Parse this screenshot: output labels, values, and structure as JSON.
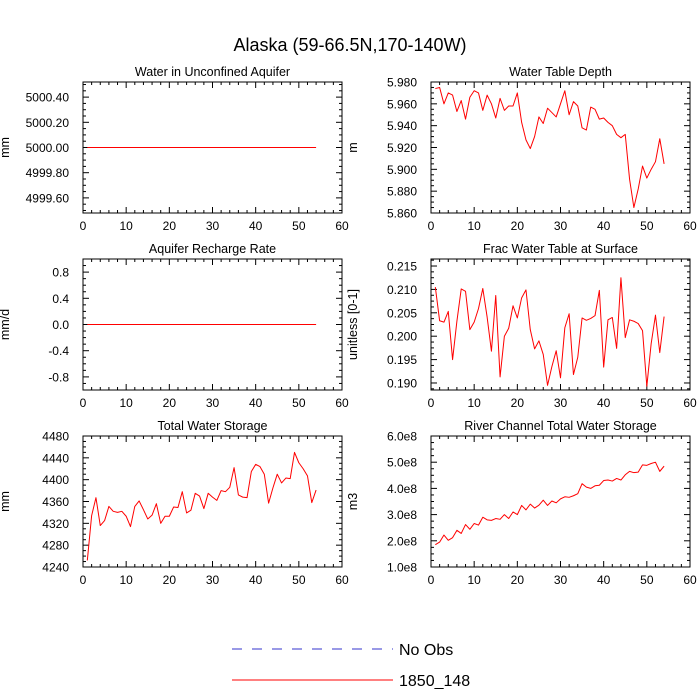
{
  "figure": {
    "title": "Alaska (59-66.5N,170-140W)",
    "legend": [
      {
        "label": "No Obs",
        "color": "#3333cc",
        "dashed": true
      },
      {
        "label": "1850_148",
        "color": "#ff0000",
        "dashed": false
      }
    ]
  },
  "chart_data": [
    {
      "type": "line",
      "title": "Water in Unconfined Aquifer",
      "ylabel": "mm",
      "xlim": [
        0,
        60
      ],
      "ylim": [
        4999.48,
        5000.52
      ],
      "xticks": [
        0,
        10,
        20,
        30,
        40,
        50,
        60
      ],
      "yticks": [
        4999.6,
        4999.8,
        5000.0,
        5000.2,
        5000.4
      ],
      "ytick_labels": [
        "4999.60",
        "4999.80",
        "5000.00",
        "5000.20",
        "5000.40"
      ],
      "series": [
        {
          "color": "#ff0000",
          "x": [
            1,
            54
          ],
          "values": [
            5000.0,
            5000.0
          ]
        }
      ]
    },
    {
      "type": "line",
      "title": "Water Table Depth",
      "ylabel": "m",
      "xlim": [
        0,
        60
      ],
      "ylim": [
        5.86,
        5.98
      ],
      "xticks": [
        0,
        10,
        20,
        30,
        40,
        50,
        60
      ],
      "yticks": [
        5.86,
        5.88,
        5.9,
        5.92,
        5.94,
        5.96,
        5.98
      ],
      "ytick_labels": [
        "5.860",
        "5.880",
        "5.900",
        "5.920",
        "5.940",
        "5.960",
        "5.980"
      ],
      "series": [
        {
          "color": "#ff0000",
          "x": [
            1,
            2,
            3,
            4,
            5,
            6,
            7,
            8,
            9,
            10,
            11,
            12,
            13,
            14,
            15,
            16,
            17,
            18,
            19,
            20,
            21,
            22,
            23,
            24,
            25,
            26,
            27,
            28,
            29,
            30,
            31,
            32,
            33,
            34,
            35,
            36,
            37,
            38,
            39,
            40,
            41,
            42,
            43,
            44,
            45,
            46,
            47,
            48,
            49,
            50,
            51,
            52,
            53,
            54
          ],
          "values": [
            5.974,
            5.975,
            5.96,
            5.97,
            5.968,
            5.953,
            5.963,
            5.946,
            5.966,
            5.972,
            5.97,
            5.954,
            5.968,
            5.96,
            5.947,
            5.965,
            5.954,
            5.958,
            5.958,
            5.97,
            5.943,
            5.927,
            5.919,
            5.93,
            5.948,
            5.942,
            5.956,
            5.952,
            5.948,
            5.96,
            5.972,
            5.95,
            5.962,
            5.958,
            5.938,
            5.936,
            5.957,
            5.955,
            5.946,
            5.947,
            5.943,
            5.94,
            5.932,
            5.929,
            5.932,
            5.891,
            5.865,
            5.882,
            5.903,
            5.892,
            5.9,
            5.907,
            5.928,
            5.905
          ]
        }
      ]
    },
    {
      "type": "line",
      "title": "Aquifer Recharge Rate",
      "ylabel": "mm/d",
      "xlim": [
        0,
        60
      ],
      "ylim": [
        -1.0,
        1.0
      ],
      "xticks": [
        0,
        10,
        20,
        30,
        40,
        50,
        60
      ],
      "yticks": [
        -0.8,
        -0.4,
        0.0,
        0.4,
        0.8
      ],
      "ytick_labels": [
        "-0.8",
        "-0.4",
        "0.0",
        "0.4",
        "0.8"
      ],
      "series": [
        {
          "color": "#ff0000",
          "x": [
            1,
            54
          ],
          "values": [
            0.0,
            0.0
          ]
        }
      ]
    },
    {
      "type": "line",
      "title": "Frac Water Table at Surface",
      "ylabel": "unitless [0-1]",
      "xlim": [
        0,
        60
      ],
      "ylim": [
        0.1885,
        0.2165
      ],
      "xticks": [
        0,
        10,
        20,
        30,
        40,
        50,
        60
      ],
      "yticks": [
        0.19,
        0.195,
        0.2,
        0.205,
        0.21,
        0.215
      ],
      "ytick_labels": [
        "0.190",
        "0.195",
        "0.200",
        "0.205",
        "0.210",
        "0.215"
      ],
      "series": [
        {
          "color": "#ff0000",
          "x": [
            1,
            2,
            3,
            4,
            5,
            6,
            7,
            8,
            9,
            10,
            11,
            12,
            13,
            14,
            15,
            16,
            17,
            18,
            19,
            20,
            21,
            22,
            23,
            24,
            25,
            26,
            27,
            28,
            29,
            30,
            31,
            32,
            33,
            34,
            35,
            36,
            37,
            38,
            39,
            40,
            41,
            42,
            43,
            44,
            45,
            46,
            47,
            48,
            49,
            50,
            51,
            52,
            53,
            54
          ],
          "values": [
            0.2105,
            0.2033,
            0.203,
            0.2053,
            0.195,
            0.2032,
            0.2101,
            0.2096,
            0.2014,
            0.203,
            0.2059,
            0.2102,
            0.2041,
            0.1968,
            0.2087,
            0.1913,
            0.2,
            0.2017,
            0.2065,
            0.2039,
            0.2082,
            0.2099,
            0.2014,
            0.1973,
            0.199,
            0.1961,
            0.1895,
            0.1935,
            0.1969,
            0.1911,
            0.2018,
            0.2048,
            0.1918,
            0.1955,
            0.2039,
            0.2034,
            0.2038,
            0.2044,
            0.2098,
            0.1934,
            0.2035,
            0.204,
            0.1974,
            0.2125,
            0.1997,
            0.2035,
            0.2032,
            0.2027,
            0.2012,
            0.1893,
            0.1984,
            0.2045,
            0.1965,
            0.2042
          ]
        }
      ]
    },
    {
      "type": "line",
      "title": "Total Water Storage",
      "ylabel": "mm",
      "xlim": [
        0,
        60
      ],
      "ylim": [
        4240,
        4480
      ],
      "xticks": [
        0,
        10,
        20,
        30,
        40,
        50,
        60
      ],
      "yticks": [
        4240,
        4280,
        4320,
        4360,
        4400,
        4440,
        4480
      ],
      "ytick_labels": [
        "4240",
        "4280",
        "4320",
        "4360",
        "4400",
        "4440",
        "4480"
      ],
      "series": [
        {
          "color": "#ff0000",
          "x": [
            1,
            2,
            3,
            4,
            5,
            6,
            7,
            8,
            9,
            10,
            11,
            12,
            13,
            14,
            15,
            16,
            17,
            18,
            19,
            20,
            21,
            22,
            23,
            24,
            25,
            26,
            27,
            28,
            29,
            30,
            31,
            32,
            33,
            34,
            35,
            36,
            37,
            38,
            39,
            40,
            41,
            42,
            43,
            44,
            45,
            46,
            47,
            48,
            49,
            50,
            51,
            52,
            53,
            54
          ],
          "values": [
            4252,
            4334,
            4367,
            4316,
            4325,
            4351,
            4342,
            4340,
            4342,
            4333,
            4314,
            4351,
            4361,
            4345,
            4328,
            4335,
            4356,
            4320,
            4333,
            4333,
            4350,
            4349,
            4378,
            4339,
            4344,
            4375,
            4370,
            4347,
            4375,
            4368,
            4362,
            4380,
            4378,
            4386,
            4422,
            4372,
            4368,
            4367,
            4415,
            4428,
            4424,
            4410,
            4357,
            4385,
            4410,
            4394,
            4403,
            4402,
            4450,
            4431,
            4420,
            4407,
            4358,
            4381
          ]
        }
      ]
    },
    {
      "type": "line",
      "title": "River Channel Total Water Storage",
      "ylabel": "m3",
      "xlim": [
        0,
        60
      ],
      "ylim": [
        100000000,
        600000000
      ],
      "xticks": [
        0,
        10,
        20,
        30,
        40,
        50,
        60
      ],
      "yticks": [
        100000000,
        200000000,
        300000000,
        400000000,
        500000000,
        600000000
      ],
      "ytick_labels": [
        "1.0e8",
        "2.0e8",
        "3.0e8",
        "4.0e8",
        "5.0e8",
        "6.0e8"
      ],
      "series": [
        {
          "color": "#ff0000",
          "x": [
            1,
            2,
            3,
            4,
            5,
            6,
            7,
            8,
            9,
            10,
            11,
            12,
            13,
            14,
            15,
            16,
            17,
            18,
            19,
            20,
            21,
            22,
            23,
            24,
            25,
            26,
            27,
            28,
            29,
            30,
            31,
            32,
            33,
            34,
            35,
            36,
            37,
            38,
            39,
            40,
            41,
            42,
            43,
            44,
            45,
            46,
            47,
            48,
            49,
            50,
            51,
            52,
            53,
            54
          ],
          "values": [
            185000000,
            195000000,
            222000000,
            202000000,
            212000000,
            240000000,
            228000000,
            262000000,
            244000000,
            266000000,
            260000000,
            290000000,
            280000000,
            278000000,
            285000000,
            282000000,
            300000000,
            285000000,
            310000000,
            300000000,
            335000000,
            318000000,
            340000000,
            325000000,
            336000000,
            355000000,
            335000000,
            352000000,
            345000000,
            360000000,
            368000000,
            366000000,
            372000000,
            380000000,
            418000000,
            405000000,
            400000000,
            410000000,
            412000000,
            430000000,
            432000000,
            428000000,
            438000000,
            432000000,
            452000000,
            465000000,
            460000000,
            462000000,
            490000000,
            488000000,
            495000000,
            500000000,
            465000000,
            485000000
          ]
        }
      ]
    }
  ]
}
